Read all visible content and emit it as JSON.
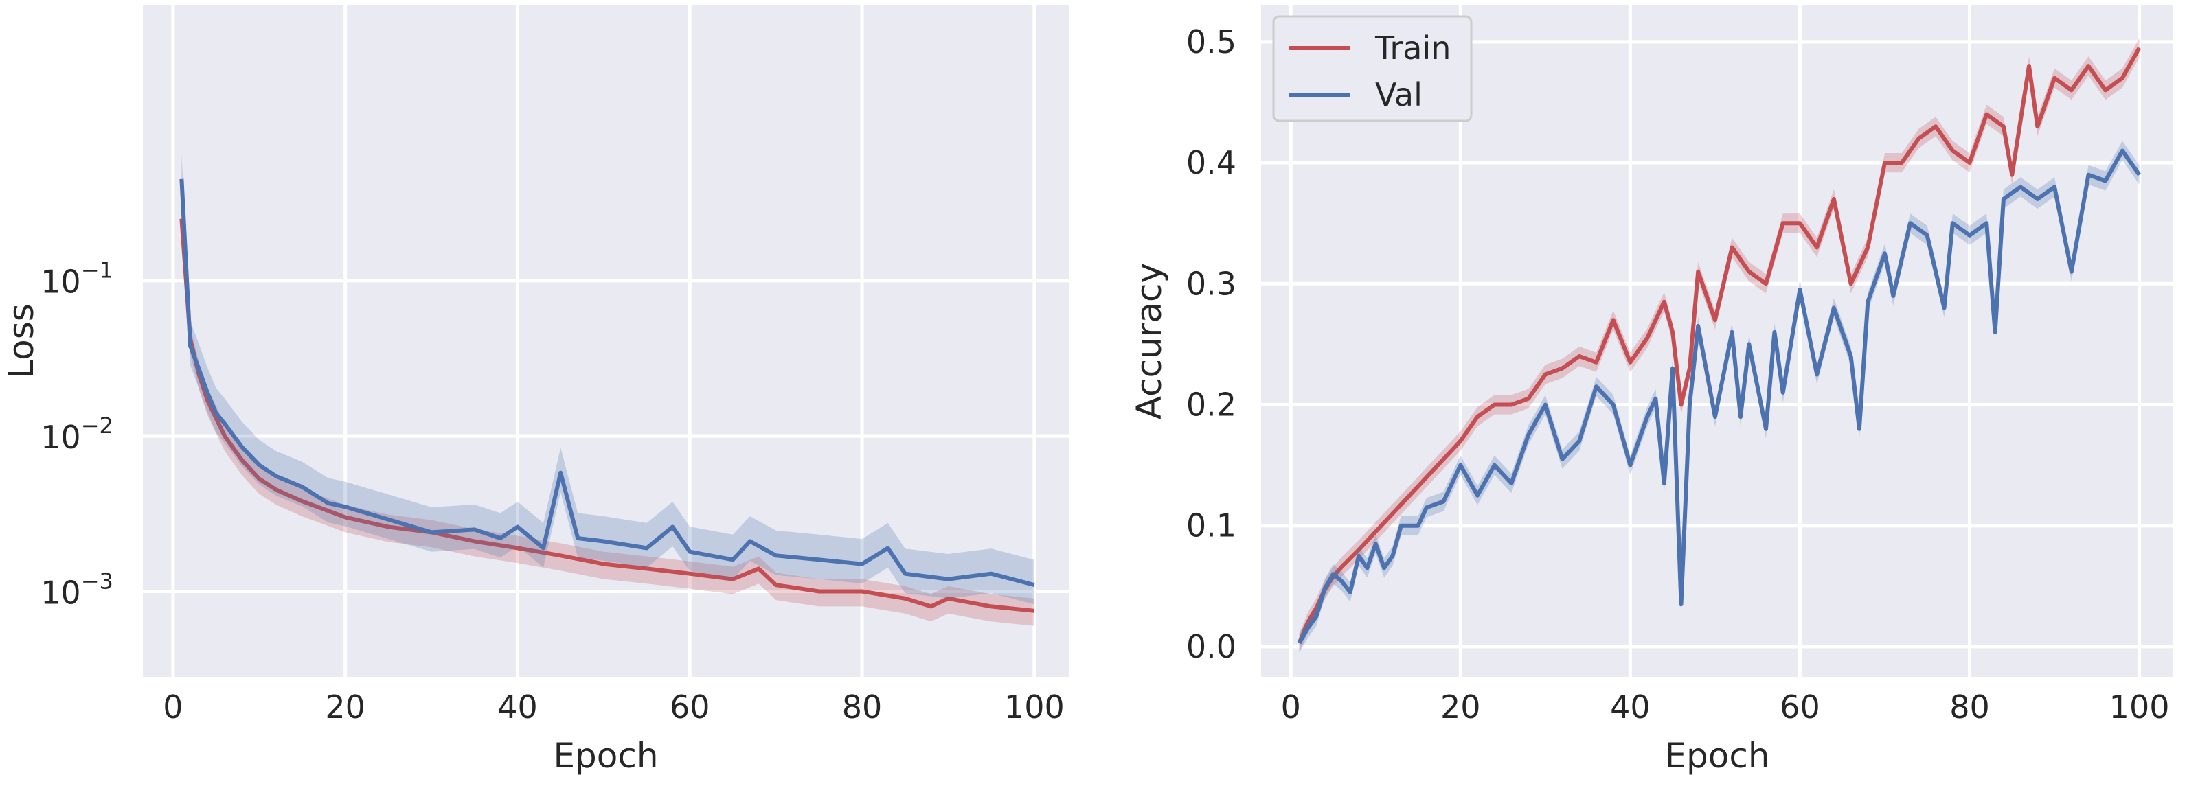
{
  "chart_data": [
    {
      "type": "line",
      "xlabel": "Epoch",
      "ylabel": "Loss",
      "yscale": "log",
      "xlim": [
        -3.5,
        104
      ],
      "ylim_log10": [
        -3.55,
        0.77
      ],
      "xticks": [
        0,
        20,
        40,
        60,
        80,
        100
      ],
      "xtick_labels": [
        "0",
        "20",
        "40",
        "60",
        "80",
        "100"
      ],
      "yticks_log10": [
        -3,
        -2,
        -1
      ],
      "ytick_labels": [
        {
          "base": "10",
          "exp": "−3"
        },
        {
          "base": "10",
          "exp": "−2"
        },
        {
          "base": "10",
          "exp": "−1"
        }
      ],
      "grid": true,
      "series": [
        {
          "color": "#c44e52",
          "points": [
            [
              1,
              0.25
            ],
            [
              2,
              0.042
            ],
            [
              3,
              0.025
            ],
            [
              4,
              0.017
            ],
            [
              5,
              0.013
            ],
            [
              6,
              0.01
            ],
            [
              8,
              0.007
            ],
            [
              10,
              0.0053
            ],
            [
              12,
              0.0045
            ],
            [
              15,
              0.0038
            ],
            [
              18,
              0.0033
            ],
            [
              20,
              0.003
            ],
            [
              25,
              0.0026
            ],
            [
              30,
              0.0024
            ],
            [
              35,
              0.0021
            ],
            [
              40,
              0.0019
            ],
            [
              45,
              0.0017
            ],
            [
              50,
              0.0015
            ],
            [
              55,
              0.0014
            ],
            [
              60,
              0.0013
            ],
            [
              65,
              0.0012
            ],
            [
              68,
              0.0014
            ],
            [
              70,
              0.0011
            ],
            [
              75,
              0.001
            ],
            [
              80,
              0.001
            ],
            [
              85,
              0.0009
            ],
            [
              88,
              0.0008
            ],
            [
              90,
              0.0009
            ],
            [
              95,
              0.0008
            ],
            [
              100,
              0.00075
            ]
          ],
          "band": {
            "low_factor": 0.8,
            "high_factor": 1.2
          }
        },
        {
          "color": "#4c72b0",
          "points": [
            [
              1,
              0.45
            ],
            [
              2,
              0.038
            ],
            [
              3,
              0.027
            ],
            [
              4,
              0.019
            ],
            [
              5,
              0.014
            ],
            [
              6,
              0.012
            ],
            [
              8,
              0.0085
            ],
            [
              10,
              0.0065
            ],
            [
              12,
              0.0055
            ],
            [
              15,
              0.0047
            ],
            [
              18,
              0.0037
            ],
            [
              20,
              0.0035
            ],
            [
              25,
              0.0029
            ],
            [
              30,
              0.0024
            ],
            [
              35,
              0.0025
            ],
            [
              38,
              0.0022
            ],
            [
              40,
              0.0026
            ],
            [
              43,
              0.0019
            ],
            [
              45,
              0.0058
            ],
            [
              47,
              0.0022
            ],
            [
              50,
              0.0021
            ],
            [
              55,
              0.0019
            ],
            [
              58,
              0.0026
            ],
            [
              60,
              0.0018
            ],
            [
              65,
              0.0016
            ],
            [
              67,
              0.0021
            ],
            [
              70,
              0.0017
            ],
            [
              75,
              0.0016
            ],
            [
              80,
              0.0015
            ],
            [
              83,
              0.0019
            ],
            [
              85,
              0.0013
            ],
            [
              90,
              0.0012
            ],
            [
              95,
              0.0013
            ],
            [
              100,
              0.0011
            ]
          ],
          "band": {
            "low_factor": 0.75,
            "high_factor": 1.45
          }
        }
      ]
    },
    {
      "type": "line",
      "xlabel": "Epoch",
      "ylabel": "Accuracy",
      "xlim": [
        -3.5,
        104
      ],
      "ylim": [
        -0.025,
        0.53
      ],
      "xticks": [
        0,
        20,
        40,
        60,
        80,
        100
      ],
      "xtick_labels": [
        "0",
        "20",
        "40",
        "60",
        "80",
        "100"
      ],
      "yticks": [
        0,
        0.1,
        0.2,
        0.3,
        0.4,
        0.5
      ],
      "ytick_labels": [
        "0.0",
        "0.1",
        "0.2",
        "0.3",
        "0.4",
        "0.5"
      ],
      "grid": true,
      "legend": {
        "position": "top-left",
        "entries": [
          "Train",
          "Val"
        ]
      },
      "series": [
        {
          "name": "Train",
          "color": "#c44e52",
          "points": [
            [
              1,
              0.003
            ],
            [
              2,
              0.02
            ],
            [
              3,
              0.032
            ],
            [
              4,
              0.047
            ],
            [
              5,
              0.058
            ],
            [
              6,
              0.066
            ],
            [
              8,
              0.08
            ],
            [
              10,
              0.095
            ],
            [
              12,
              0.11
            ],
            [
              14,
              0.125
            ],
            [
              16,
              0.14
            ],
            [
              18,
              0.155
            ],
            [
              20,
              0.17
            ],
            [
              22,
              0.19
            ],
            [
              24,
              0.2
            ],
            [
              26,
              0.2
            ],
            [
              28,
              0.205
            ],
            [
              30,
              0.225
            ],
            [
              32,
              0.23
            ],
            [
              34,
              0.24
            ],
            [
              36,
              0.235
            ],
            [
              38,
              0.27
            ],
            [
              40,
              0.235
            ],
            [
              42,
              0.255
            ],
            [
              44,
              0.285
            ],
            [
              45,
              0.26
            ],
            [
              46,
              0.2
            ],
            [
              47,
              0.23
            ],
            [
              48,
              0.31
            ],
            [
              50,
              0.27
            ],
            [
              52,
              0.33
            ],
            [
              54,
              0.31
            ],
            [
              56,
              0.3
            ],
            [
              58,
              0.35
            ],
            [
              60,
              0.35
            ],
            [
              62,
              0.33
            ],
            [
              64,
              0.37
            ],
            [
              66,
              0.3
            ],
            [
              68,
              0.33
            ],
            [
              70,
              0.4
            ],
            [
              72,
              0.4
            ],
            [
              74,
              0.42
            ],
            [
              76,
              0.43
            ],
            [
              78,
              0.41
            ],
            [
              80,
              0.4
            ],
            [
              82,
              0.44
            ],
            [
              84,
              0.43
            ],
            [
              85,
              0.39
            ],
            [
              87,
              0.48
            ],
            [
              88,
              0.43
            ],
            [
              90,
              0.47
            ],
            [
              92,
              0.46
            ],
            [
              94,
              0.48
            ],
            [
              96,
              0.46
            ],
            [
              98,
              0.47
            ],
            [
              100,
              0.495
            ]
          ],
          "band": {
            "half_width": 0.008
          }
        },
        {
          "name": "Val",
          "color": "#4c72b0",
          "points": [
            [
              1,
              0.003
            ],
            [
              2,
              0.015
            ],
            [
              3,
              0.025
            ],
            [
              4,
              0.048
            ],
            [
              5,
              0.06
            ],
            [
              6,
              0.054
            ],
            [
              7,
              0.045
            ],
            [
              8,
              0.075
            ],
            [
              9,
              0.065
            ],
            [
              10,
              0.085
            ],
            [
              11,
              0.065
            ],
            [
              12,
              0.075
            ],
            [
              13,
              0.1
            ],
            [
              15,
              0.1
            ],
            [
              16,
              0.115
            ],
            [
              18,
              0.12
            ],
            [
              20,
              0.15
            ],
            [
              22,
              0.125
            ],
            [
              24,
              0.15
            ],
            [
              26,
              0.135
            ],
            [
              28,
              0.175
            ],
            [
              30,
              0.2
            ],
            [
              32,
              0.155
            ],
            [
              34,
              0.17
            ],
            [
              36,
              0.215
            ],
            [
              38,
              0.2
            ],
            [
              40,
              0.15
            ],
            [
              42,
              0.19
            ],
            [
              43,
              0.205
            ],
            [
              44,
              0.135
            ],
            [
              45,
              0.23
            ],
            [
              46,
              0.035
            ],
            [
              47,
              0.2
            ],
            [
              48,
              0.265
            ],
            [
              50,
              0.19
            ],
            [
              52,
              0.26
            ],
            [
              53,
              0.19
            ],
            [
              54,
              0.25
            ],
            [
              56,
              0.18
            ],
            [
              57,
              0.26
            ],
            [
              58,
              0.21
            ],
            [
              60,
              0.295
            ],
            [
              62,
              0.225
            ],
            [
              64,
              0.28
            ],
            [
              66,
              0.24
            ],
            [
              67,
              0.18
            ],
            [
              68,
              0.285
            ],
            [
              70,
              0.325
            ],
            [
              71,
              0.29
            ],
            [
              73,
              0.35
            ],
            [
              75,
              0.34
            ],
            [
              77,
              0.28
            ],
            [
              78,
              0.35
            ],
            [
              80,
              0.34
            ],
            [
              82,
              0.35
            ],
            [
              83,
              0.26
            ],
            [
              84,
              0.37
            ],
            [
              86,
              0.38
            ],
            [
              88,
              0.37
            ],
            [
              90,
              0.38
            ],
            [
              92,
              0.31
            ],
            [
              94,
              0.39
            ],
            [
              96,
              0.385
            ],
            [
              98,
              0.41
            ],
            [
              100,
              0.39
            ]
          ],
          "band": {
            "half_width": 0.008
          }
        }
      ]
    }
  ]
}
